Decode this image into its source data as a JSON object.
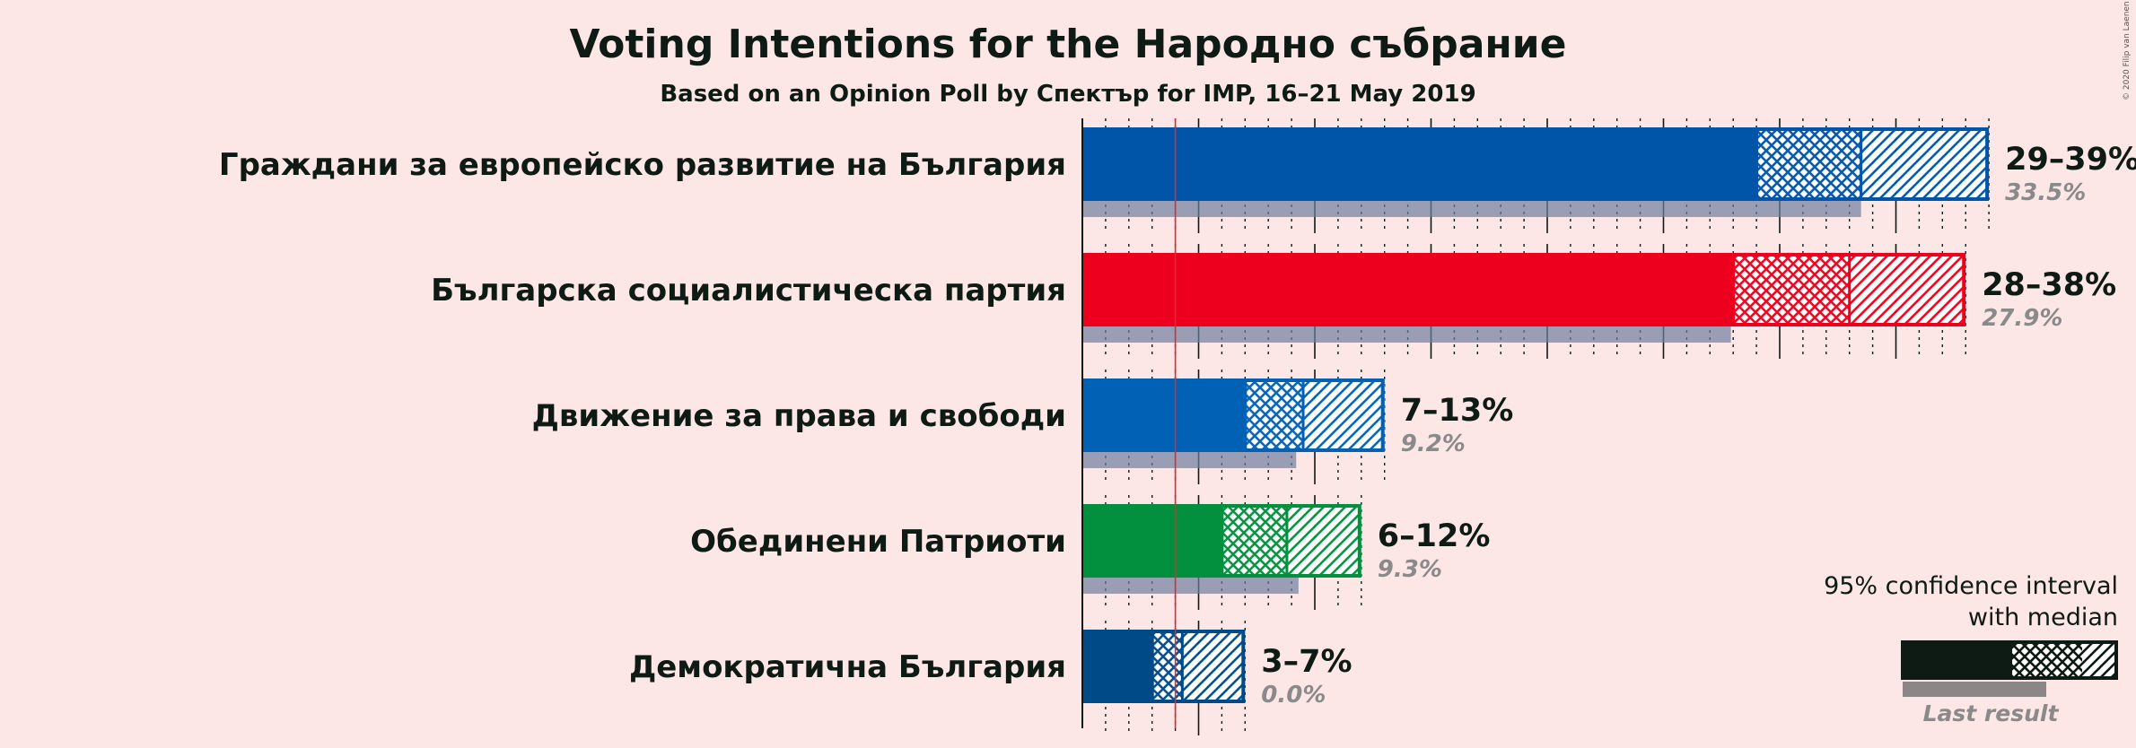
{
  "chart_data": {
    "type": "bar",
    "title": "Voting Intentions for the Народно събрание",
    "subtitle": "Based on an Opinion Poll by Спектър for IMP, 16–21 May 2019",
    "copyright": "© 2020 Filip van Laenen",
    "xlim": [
      0,
      40
    ],
    "threshold": 4,
    "parties": [
      {
        "name": "Граждани за европейско развитие на България",
        "low": 29,
        "median": 33.5,
        "high": 39,
        "range_label": "29–39%",
        "last": 33.5,
        "last_label": "33.5%",
        "color": "#0055a9"
      },
      {
        "name": "Българска социалистическа партия",
        "low": 28,
        "median": 33,
        "high": 38,
        "range_label": "28–38%",
        "last": 27.9,
        "last_label": "27.9%",
        "color": "#ec001e"
      },
      {
        "name": "Движение за права и свободи",
        "low": 7,
        "median": 9.5,
        "high": 13,
        "range_label": "7–13%",
        "last": 9.2,
        "last_label": "9.2%",
        "color": "#0161b5"
      },
      {
        "name": "Обединени Патриоти",
        "low": 6,
        "median": 8.8,
        "high": 12,
        "range_label": "6–12%",
        "last": 9.3,
        "last_label": "9.3%",
        "color": "#02903e"
      },
      {
        "name": "Демократична България",
        "low": 3,
        "median": 4.3,
        "high": 7,
        "range_label": "3–7%",
        "last": 0,
        "last_label": "0.0%",
        "color": "#004a87"
      }
    ],
    "legend": {
      "line1": "95% confidence interval",
      "line2": "with median",
      "last_result": "Last result",
      "color": "#0e1a14"
    }
  }
}
